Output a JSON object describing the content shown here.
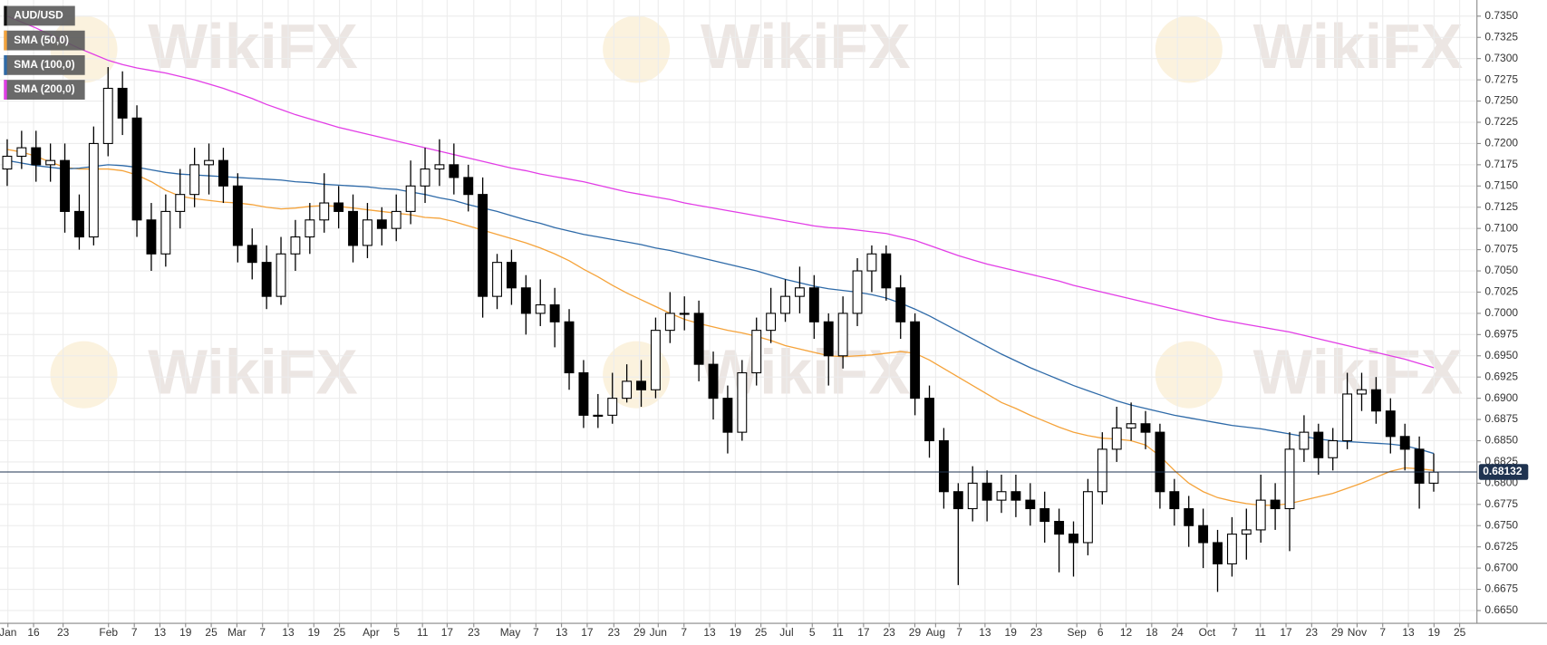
{
  "chart_data": {
    "type": "candlestick",
    "watermark": "WikiFX",
    "last_price": 0.68132,
    "grid": true,
    "legend": "top-left",
    "xlim": [
      0,
      102.5
    ],
    "ylim": [
      0.6635,
      0.7369
    ],
    "yticks": [
      {
        "value": 0.665,
        "label": "0.6650"
      },
      {
        "value": 0.6675,
        "label": "0.6675"
      },
      {
        "value": 0.67,
        "label": "0.6700"
      },
      {
        "value": 0.6725,
        "label": "0.6725"
      },
      {
        "value": 0.675,
        "label": "0.6750"
      },
      {
        "value": 0.6775,
        "label": "0.6775"
      },
      {
        "value": 0.68,
        "label": "0.6800"
      },
      {
        "value": 0.6825,
        "label": "0.6825"
      },
      {
        "value": 0.685,
        "label": "0.6850"
      },
      {
        "value": 0.6875,
        "label": "0.6875"
      },
      {
        "value": 0.69,
        "label": "0.6900"
      },
      {
        "value": 0.6925,
        "label": "0.6925"
      },
      {
        "value": 0.695,
        "label": "0.6950"
      },
      {
        "value": 0.6975,
        "label": "0.6975"
      },
      {
        "value": 0.7,
        "label": "0.7000"
      },
      {
        "value": 0.7025,
        "label": "0.7025"
      },
      {
        "value": 0.705,
        "label": "0.7050"
      },
      {
        "value": 0.7075,
        "label": "0.7075"
      },
      {
        "value": 0.71,
        "label": "0.7100"
      },
      {
        "value": 0.7125,
        "label": "0.7125"
      },
      {
        "value": 0.715,
        "label": "0.7150"
      },
      {
        "value": 0.7175,
        "label": "0.7175"
      },
      {
        "value": 0.72,
        "label": "0.7200"
      },
      {
        "value": 0.7225,
        "label": "0.7225"
      },
      {
        "value": 0.725,
        "label": "0.7250"
      },
      {
        "value": 0.7275,
        "label": "0.7275"
      },
      {
        "value": 0.73,
        "label": "0.7300"
      },
      {
        "value": 0.7325,
        "label": "0.7325"
      },
      {
        "value": 0.735,
        "label": "0.7350"
      }
    ],
    "xticks": [
      {
        "value": 0.55,
        "label": "Jan"
      },
      {
        "value": 2.33,
        "label": "16"
      },
      {
        "value": 4.38,
        "label": "23"
      },
      {
        "value": 7.53,
        "label": "Feb"
      },
      {
        "value": 9.32,
        "label": "7"
      },
      {
        "value": 11.1,
        "label": "13"
      },
      {
        "value": 12.88,
        "label": "19"
      },
      {
        "value": 14.66,
        "label": "25"
      },
      {
        "value": 16.44,
        "label": "Mar"
      },
      {
        "value": 18.22,
        "label": "7"
      },
      {
        "value": 20.0,
        "label": "13"
      },
      {
        "value": 21.78,
        "label": "19"
      },
      {
        "value": 23.56,
        "label": "25"
      },
      {
        "value": 25.75,
        "label": "Apr"
      },
      {
        "value": 27.53,
        "label": "5"
      },
      {
        "value": 29.32,
        "label": "11"
      },
      {
        "value": 31.03,
        "label": "17"
      },
      {
        "value": 32.88,
        "label": "23"
      },
      {
        "value": 35.41,
        "label": "May"
      },
      {
        "value": 37.19,
        "label": "7"
      },
      {
        "value": 38.97,
        "label": "13"
      },
      {
        "value": 40.75,
        "label": "17"
      },
      {
        "value": 42.6,
        "label": "23"
      },
      {
        "value": 44.38,
        "label": "29"
      },
      {
        "value": 45.68,
        "label": "Jun"
      },
      {
        "value": 47.47,
        "label": "7"
      },
      {
        "value": 49.25,
        "label": "13"
      },
      {
        "value": 51.03,
        "label": "19"
      },
      {
        "value": 52.81,
        "label": "25"
      },
      {
        "value": 54.59,
        "label": "Jul"
      },
      {
        "value": 56.37,
        "label": "5"
      },
      {
        "value": 58.15,
        "label": "11"
      },
      {
        "value": 59.93,
        "label": "17"
      },
      {
        "value": 61.71,
        "label": "23"
      },
      {
        "value": 63.49,
        "label": "29"
      },
      {
        "value": 64.93,
        "label": "Aug"
      },
      {
        "value": 66.58,
        "label": "7"
      },
      {
        "value": 68.36,
        "label": "13"
      },
      {
        "value": 70.14,
        "label": "19"
      },
      {
        "value": 71.92,
        "label": "23"
      },
      {
        "value": 74.73,
        "label": "Sep"
      },
      {
        "value": 76.37,
        "label": "6"
      },
      {
        "value": 78.15,
        "label": "12"
      },
      {
        "value": 79.93,
        "label": "18"
      },
      {
        "value": 81.71,
        "label": "24"
      },
      {
        "value": 83.77,
        "label": "Oct"
      },
      {
        "value": 85.68,
        "label": "7"
      },
      {
        "value": 87.47,
        "label": "11"
      },
      {
        "value": 89.25,
        "label": "17"
      },
      {
        "value": 91.03,
        "label": "23"
      },
      {
        "value": 92.81,
        "label": "29"
      },
      {
        "value": 94.18,
        "label": "Nov"
      },
      {
        "value": 95.96,
        "label": "7"
      },
      {
        "value": 97.74,
        "label": "13"
      },
      {
        "value": 99.52,
        "label": "19"
      },
      {
        "value": 101.3,
        "label": "25"
      }
    ],
    "series": [
      {
        "name": "AUD/USD",
        "type": "candlestick",
        "color": "#000000",
        "up_color": "#ffffff",
        "open": [
          0.717,
          0.7185,
          0.7195,
          0.7175,
          0.718,
          0.712,
          0.709,
          0.72,
          0.7265,
          0.723,
          0.711,
          0.707,
          0.712,
          0.714,
          0.7175,
          0.718,
          0.715,
          0.708,
          0.706,
          0.702,
          0.707,
          0.709,
          0.711,
          0.713,
          0.712,
          0.708,
          0.711,
          0.71,
          0.712,
          0.715,
          0.717,
          0.7175,
          0.716,
          0.714,
          0.702,
          0.706,
          0.703,
          0.7,
          0.701,
          0.699,
          0.693,
          0.688,
          0.688,
          0.69,
          0.692,
          0.691,
          0.698,
          0.7,
          0.7,
          0.694,
          0.69,
          0.686,
          0.693,
          0.698,
          0.7,
          0.702,
          0.703,
          0.699,
          0.695,
          0.7,
          0.705,
          0.707,
          0.703,
          0.699,
          0.69,
          0.685,
          0.679,
          0.677,
          0.68,
          0.678,
          0.679,
          0.678,
          0.677,
          0.6755,
          0.674,
          0.673,
          0.679,
          0.684,
          0.6865,
          0.687,
          0.686,
          0.679,
          0.677,
          0.675,
          0.673,
          0.6705,
          0.674,
          0.6745,
          0.678,
          0.677,
          0.684,
          0.686,
          0.683,
          0.685,
          0.6905,
          0.691,
          0.6885,
          0.6855,
          0.684,
          0.68
        ],
        "high": [
          0.7205,
          0.7215,
          0.7215,
          0.72,
          0.72,
          0.714,
          0.722,
          0.729,
          0.7285,
          0.7245,
          0.713,
          0.714,
          0.717,
          0.7195,
          0.72,
          0.7195,
          0.7165,
          0.71,
          0.708,
          0.709,
          0.711,
          0.713,
          0.7165,
          0.715,
          0.714,
          0.713,
          0.7125,
          0.714,
          0.718,
          0.7195,
          0.7205,
          0.72,
          0.7175,
          0.716,
          0.707,
          0.7075,
          0.7045,
          0.704,
          0.703,
          0.7005,
          0.6945,
          0.6905,
          0.693,
          0.694,
          0.6945,
          0.6995,
          0.7025,
          0.702,
          0.7015,
          0.6955,
          0.6915,
          0.6945,
          0.6995,
          0.703,
          0.704,
          0.7055,
          0.7045,
          0.7,
          0.702,
          0.7065,
          0.708,
          0.708,
          0.7045,
          0.7,
          0.6915,
          0.6865,
          0.68,
          0.682,
          0.6815,
          0.681,
          0.681,
          0.68,
          0.679,
          0.677,
          0.6755,
          0.6805,
          0.686,
          0.689,
          0.6895,
          0.6885,
          0.687,
          0.6805,
          0.6785,
          0.677,
          0.6745,
          0.676,
          0.677,
          0.681,
          0.68,
          0.686,
          0.688,
          0.687,
          0.6865,
          0.693,
          0.693,
          0.6925,
          0.69,
          0.687,
          0.6855,
          0.6835
        ],
        "low": [
          0.715,
          0.717,
          0.7155,
          0.7155,
          0.7095,
          0.7075,
          0.708,
          0.7185,
          0.721,
          0.709,
          0.705,
          0.7055,
          0.71,
          0.7125,
          0.714,
          0.713,
          0.706,
          0.704,
          0.7005,
          0.701,
          0.705,
          0.707,
          0.7095,
          0.71,
          0.706,
          0.7065,
          0.708,
          0.7085,
          0.7105,
          0.713,
          0.715,
          0.714,
          0.712,
          0.6995,
          0.7005,
          0.701,
          0.6975,
          0.6985,
          0.696,
          0.691,
          0.6865,
          0.6865,
          0.687,
          0.6895,
          0.689,
          0.69,
          0.6965,
          0.698,
          0.692,
          0.6875,
          0.6835,
          0.685,
          0.6915,
          0.6965,
          0.699,
          0.7,
          0.697,
          0.6915,
          0.6935,
          0.6985,
          0.7025,
          0.7015,
          0.697,
          0.688,
          0.683,
          0.677,
          0.668,
          0.6755,
          0.6755,
          0.6765,
          0.676,
          0.675,
          0.673,
          0.6695,
          0.669,
          0.6715,
          0.6775,
          0.6825,
          0.685,
          0.684,
          0.677,
          0.675,
          0.6725,
          0.67,
          0.6672,
          0.669,
          0.671,
          0.673,
          0.6745,
          0.672,
          0.6825,
          0.681,
          0.6815,
          0.684,
          0.6885,
          0.687,
          0.6835,
          0.6815,
          0.677,
          0.679
        ],
        "close": [
          0.7185,
          0.7195,
          0.7175,
          0.718,
          0.712,
          0.709,
          0.72,
          0.7265,
          0.723,
          0.711,
          0.707,
          0.712,
          0.714,
          0.7175,
          0.718,
          0.715,
          0.708,
          0.706,
          0.702,
          0.707,
          0.709,
          0.711,
          0.713,
          0.712,
          0.708,
          0.711,
          0.71,
          0.712,
          0.715,
          0.717,
          0.7175,
          0.716,
          0.714,
          0.702,
          0.706,
          0.703,
          0.7,
          0.701,
          0.699,
          0.693,
          0.688,
          0.688,
          0.69,
          0.692,
          0.691,
          0.698,
          0.7,
          0.7,
          0.694,
          0.69,
          0.686,
          0.693,
          0.698,
          0.7,
          0.702,
          0.703,
          0.699,
          0.695,
          0.7,
          0.705,
          0.707,
          0.703,
          0.699,
          0.69,
          0.685,
          0.679,
          0.677,
          0.68,
          0.678,
          0.679,
          0.678,
          0.677,
          0.6755,
          0.674,
          0.673,
          0.679,
          0.684,
          0.6865,
          0.687,
          0.686,
          0.679,
          0.677,
          0.675,
          0.673,
          0.6705,
          0.674,
          0.6745,
          0.678,
          0.677,
          0.684,
          0.686,
          0.683,
          0.685,
          0.6905,
          0.691,
          0.6885,
          0.6855,
          0.684,
          0.68,
          0.6813
        ]
      },
      {
        "name": "SMA (50,0)",
        "type": "line",
        "color": "#f5a33a",
        "values": [
          0.7193,
          0.719,
          0.7185,
          0.7178,
          0.7172,
          0.717,
          0.717,
          0.717,
          0.7168,
          0.7163,
          0.7155,
          0.7145,
          0.7138,
          0.7135,
          0.7133,
          0.7131,
          0.713,
          0.7128,
          0.7125,
          0.7123,
          0.7124,
          0.7126,
          0.7127,
          0.7126,
          0.7124,
          0.7122,
          0.712,
          0.7118,
          0.7116,
          0.7113,
          0.7112,
          0.7108,
          0.7103,
          0.7098,
          0.7093,
          0.7088,
          0.7083,
          0.7077,
          0.707,
          0.7062,
          0.7052,
          0.7043,
          0.7033,
          0.7024,
          0.7016,
          0.7008,
          0.7,
          0.6993,
          0.6988,
          0.6984,
          0.698,
          0.6977,
          0.6973,
          0.6968,
          0.6962,
          0.6958,
          0.6954,
          0.695,
          0.6949,
          0.695,
          0.6951,
          0.6953,
          0.6955,
          0.6953,
          0.6945,
          0.6935,
          0.6925,
          0.6915,
          0.6905,
          0.6895,
          0.6888,
          0.688,
          0.6873,
          0.6866,
          0.686,
          0.6856,
          0.6853,
          0.6852,
          0.685,
          0.6845,
          0.6832,
          0.6815,
          0.68,
          0.679,
          0.6783,
          0.6779,
          0.6776,
          0.6774,
          0.6774,
          0.6776,
          0.678,
          0.6784,
          0.6788,
          0.6794,
          0.68,
          0.6807,
          0.6814,
          0.6818,
          0.6817,
          0.6815
        ]
      },
      {
        "name": "SMA (100,0)",
        "type": "line",
        "color": "#2e6aa8",
        "values": [
          0.718,
          0.7177,
          0.7174,
          0.7172,
          0.717,
          0.7171,
          0.7173,
          0.7175,
          0.7174,
          0.7172,
          0.7169,
          0.7166,
          0.7164,
          0.7163,
          0.7162,
          0.7161,
          0.716,
          0.7159,
          0.7158,
          0.7157,
          0.7155,
          0.7154,
          0.7152,
          0.7151,
          0.715,
          0.7149,
          0.7147,
          0.7146,
          0.7143,
          0.714,
          0.7136,
          0.7133,
          0.7128,
          0.7124,
          0.712,
          0.7115,
          0.711,
          0.7106,
          0.7101,
          0.7097,
          0.7093,
          0.709,
          0.7087,
          0.7084,
          0.7081,
          0.7077,
          0.7074,
          0.707,
          0.7066,
          0.7062,
          0.7058,
          0.7054,
          0.705,
          0.7045,
          0.704,
          0.7036,
          0.7032,
          0.7029,
          0.7027,
          0.7025,
          0.7022,
          0.7018,
          0.7012,
          0.7005,
          0.6997,
          0.6988,
          0.6979,
          0.697,
          0.6961,
          0.6952,
          0.6944,
          0.6936,
          0.6929,
          0.6922,
          0.6915,
          0.6909,
          0.6903,
          0.6897,
          0.6892,
          0.6888,
          0.6884,
          0.688,
          0.6877,
          0.6874,
          0.6871,
          0.6868,
          0.6866,
          0.6864,
          0.6861,
          0.6858,
          0.6855,
          0.6852,
          0.685,
          0.6849,
          0.6848,
          0.6847,
          0.6846,
          0.6844,
          0.684,
          0.6835
        ]
      },
      {
        "name": "SMA (200,0)",
        "type": "line",
        "color": "#e23de6",
        "values": [
          0.735,
          0.7343,
          0.7336,
          0.7328,
          0.732,
          0.7312,
          0.7305,
          0.7298,
          0.7293,
          0.7289,
          0.7286,
          0.7283,
          0.7279,
          0.7275,
          0.727,
          0.7265,
          0.7259,
          0.7253,
          0.7246,
          0.724,
          0.7234,
          0.7229,
          0.7224,
          0.7219,
          0.7215,
          0.7211,
          0.7207,
          0.7203,
          0.7199,
          0.7195,
          0.7191,
          0.7187,
          0.7183,
          0.7179,
          0.7175,
          0.7171,
          0.7168,
          0.7164,
          0.7161,
          0.7158,
          0.7155,
          0.7151,
          0.7147,
          0.7143,
          0.714,
          0.7137,
          0.7134,
          0.713,
          0.7127,
          0.7124,
          0.7121,
          0.7118,
          0.7115,
          0.7112,
          0.7109,
          0.7106,
          0.7103,
          0.7101,
          0.71,
          0.7098,
          0.7096,
          0.7094,
          0.709,
          0.7086,
          0.708,
          0.7074,
          0.7068,
          0.7063,
          0.7058,
          0.7054,
          0.705,
          0.7046,
          0.7042,
          0.7038,
          0.7033,
          0.7029,
          0.7025,
          0.7021,
          0.7017,
          0.7013,
          0.7009,
          0.7005,
          0.7001,
          0.6997,
          0.6993,
          0.699,
          0.6987,
          0.6984,
          0.6981,
          0.6978,
          0.6974,
          0.697,
          0.6966,
          0.6962,
          0.6958,
          0.6954,
          0.695,
          0.6946,
          0.6941,
          0.6936
        ]
      }
    ]
  }
}
